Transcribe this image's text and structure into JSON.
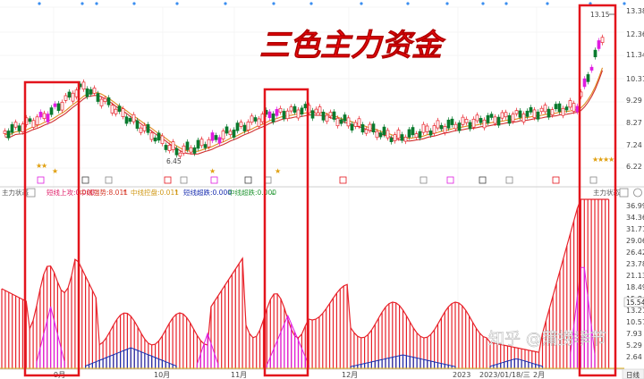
{
  "title": "三色主力资金",
  "upper_panel": {
    "price_axis": [
      "13.38",
      "12.36",
      "11.34",
      "10.31",
      "9.29",
      "8.27",
      "7.24",
      "6.22"
    ],
    "high_label": "13.15",
    "low_label": "6.45"
  },
  "indicator_bar": {
    "name": "主力状态",
    "items": [
      {
        "label": "短线上攻:0.000",
        "color": "#e0206a"
      },
      {
        "label": "中线强势:8.011",
        "color": "#d63a2a",
        "arrow": "↑"
      },
      {
        "label": "中线控盘:0.011",
        "color": "#d19a1a",
        "arrow": "↑"
      },
      {
        "label": "短线超跌:0.000",
        "color": "#1a2fb0"
      },
      {
        "label": "中线超跌:0.000",
        "color": "#2a9a3a",
        "arrow": "↓"
      }
    ],
    "right_label": "主力状态"
  },
  "lower_panel": {
    "value_axis": [
      "36.99",
      "34.36",
      "31.71",
      "29.06",
      "26.42",
      "23.78",
      "21.13",
      "18.49",
      "15.84",
      "13.21",
      "10.57",
      "7.93",
      "5.29",
      "2.64"
    ],
    "current_value": "15.54"
  },
  "x_axis": [
    "9月",
    "10月",
    "11月",
    "12月",
    "2023",
    "2023/01/18/三",
    "2月"
  ],
  "right_button": "日线",
  "watermark": "知乎 @蒲捞季节",
  "colors": {
    "up": "#e8222a",
    "down": "#0a7a2e",
    "magenta": "#e01ce0",
    "blue": "#1a2fb0",
    "highlight": "#e3141c",
    "orange_ma": "#e08a20",
    "red_ma": "#d03030"
  }
}
